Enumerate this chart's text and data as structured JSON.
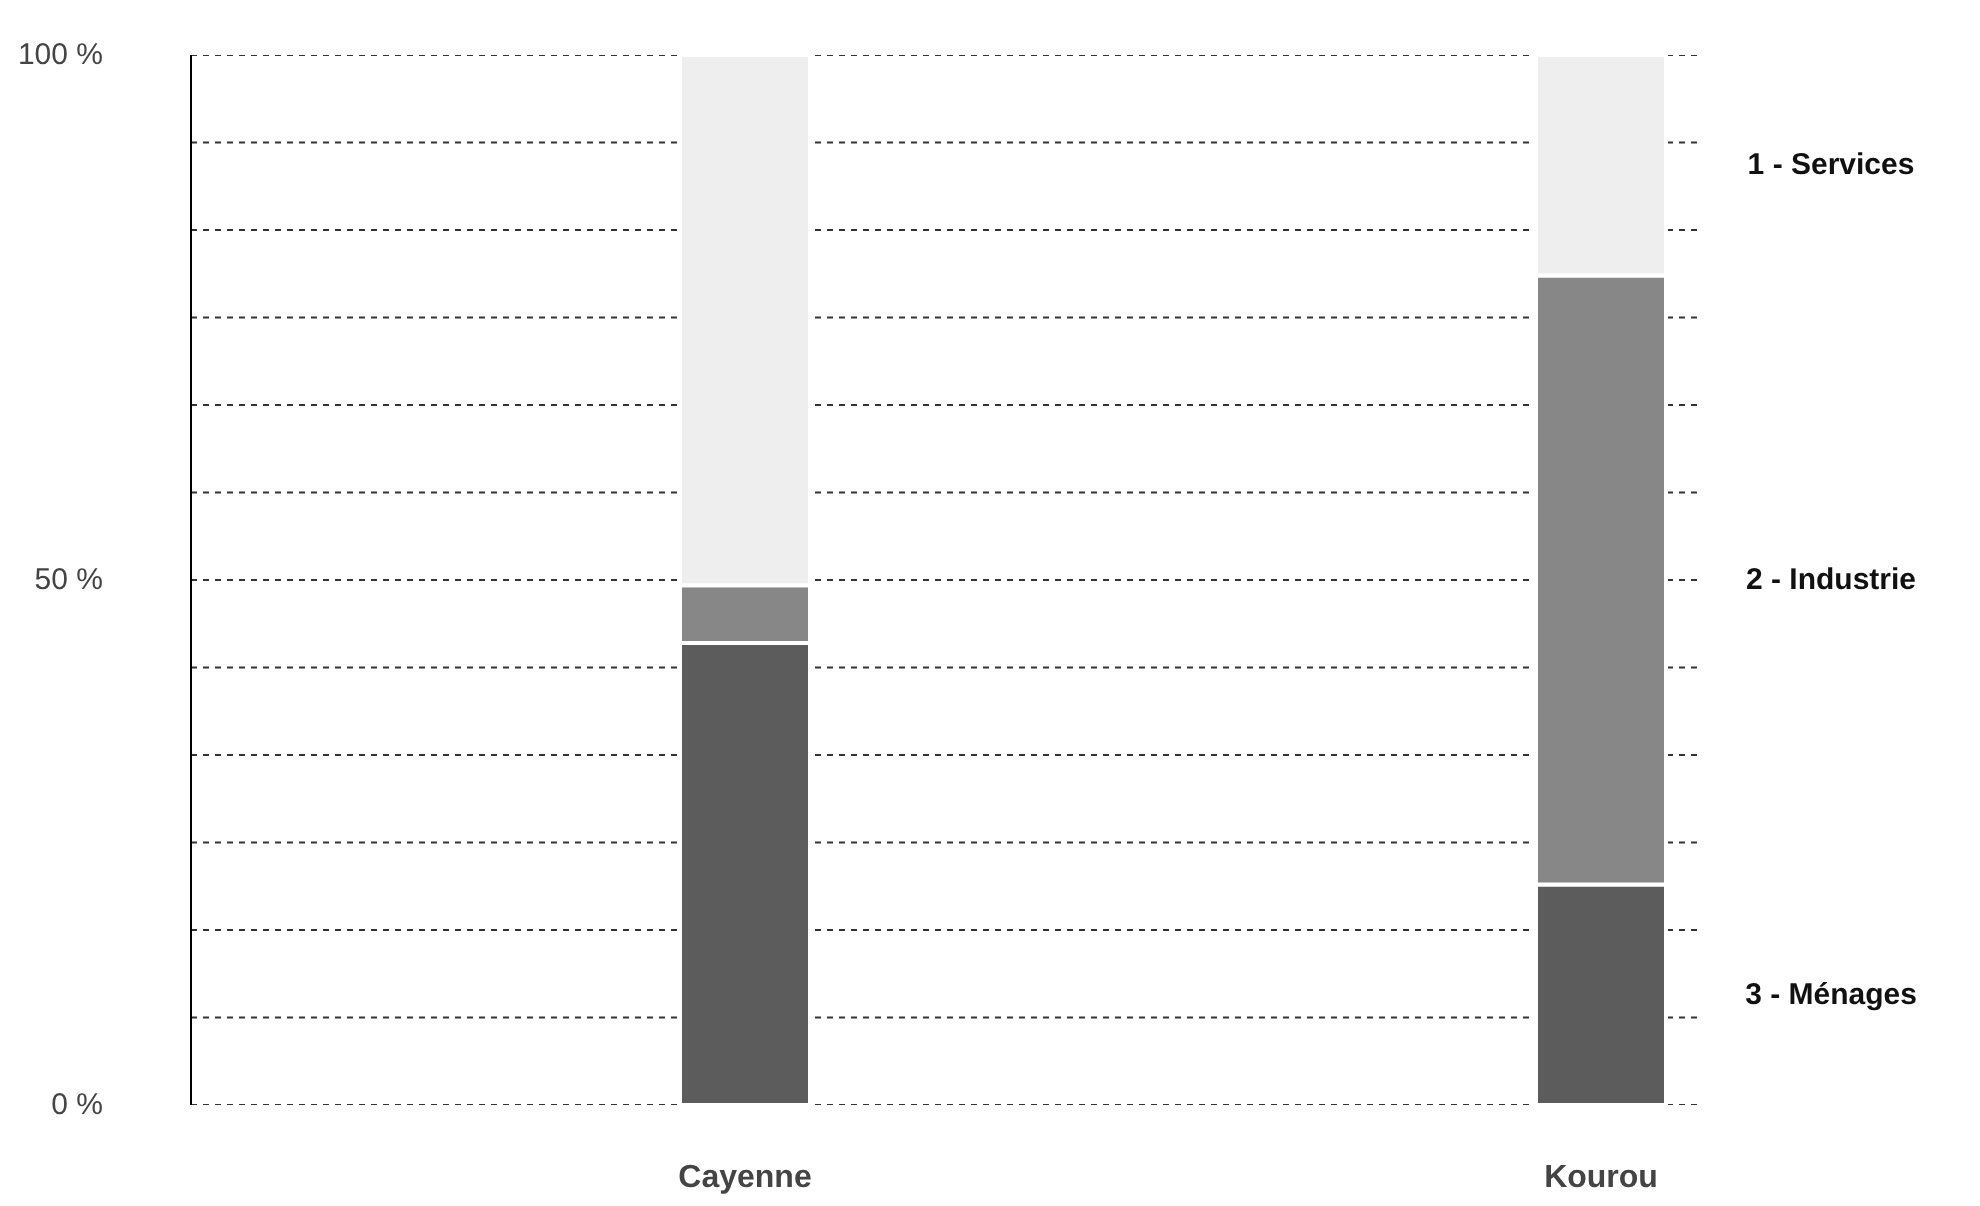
{
  "chart_data": {
    "type": "bar",
    "stacked": true,
    "categories": [
      "Cayenne",
      "Kourou"
    ],
    "series": [
      {
        "name": "3 - Ménages",
        "color": "#5c5c5c",
        "values": [
          44,
          21
        ]
      },
      {
        "name": "2 - Industrie",
        "color": "#878787",
        "values": [
          5.5,
          58
        ]
      },
      {
        "name": "1 - Services",
        "color": "#eeeeee",
        "values": [
          50.5,
          21
        ]
      }
    ],
    "ylim": [
      0,
      100
    ],
    "yticks": [
      {
        "value": 0,
        "label": "0 %"
      },
      {
        "value": 8.333,
        "label": null
      },
      {
        "value": 16.667,
        "label": null
      },
      {
        "value": 25,
        "label": null
      },
      {
        "value": 33.333,
        "label": null
      },
      {
        "value": 41.667,
        "label": null
      },
      {
        "value": 50,
        "label": "50 %"
      },
      {
        "value": 58.333,
        "label": null
      },
      {
        "value": 66.667,
        "label": null
      },
      {
        "value": 75,
        "label": null
      },
      {
        "value": 83.333,
        "label": null
      },
      {
        "value": 91.667,
        "label": null
      },
      {
        "value": 100,
        "label": "100 %"
      }
    ],
    "grid": "y"
  }
}
